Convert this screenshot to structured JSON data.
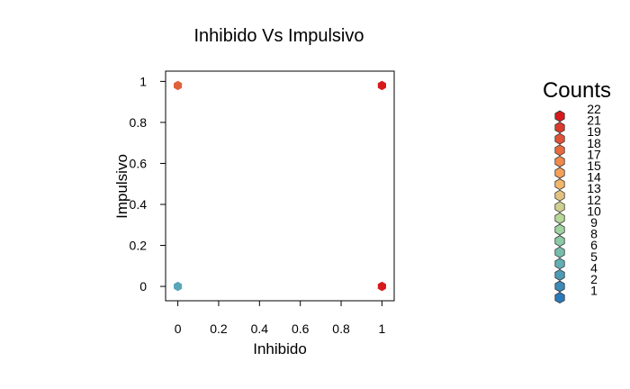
{
  "chart_data": {
    "type": "hexbin",
    "title": "Inhibido Vs Impulsivo",
    "xlabel": "Inhibido",
    "ylabel": "Impulsivo",
    "xlim": [
      -0.06,
      1.06
    ],
    "ylim": [
      -0.07,
      1.05
    ],
    "xticks": [
      0,
      0.2,
      0.4,
      0.6,
      0.8,
      1
    ],
    "yticks": [
      0,
      0.2,
      0.4,
      0.6,
      0.8,
      1
    ],
    "xtick_labels": [
      "0",
      "0.2",
      "0.4",
      "0.6",
      "0.8",
      "1"
    ],
    "ytick_labels": [
      "0",
      "0.2",
      "0.4",
      "0.6",
      "0.8",
      "1"
    ],
    "points": [
      {
        "x": 0,
        "y": 0,
        "count": 5,
        "color": "#5aa5b8"
      },
      {
        "x": 0,
        "y": 0.98,
        "count": 19,
        "color": "#e0603c"
      },
      {
        "x": 1,
        "y": 0.98,
        "count": 22,
        "color": "#d7191c"
      },
      {
        "x": 1,
        "y": 0,
        "count": 22,
        "color": "#d7191c"
      }
    ],
    "legend": {
      "title": "Counts",
      "position": "right",
      "entries": [
        {
          "label": "22",
          "color": "#d7191c"
        },
        {
          "label": "21",
          "color": "#db3a2c"
        },
        {
          "label": "19",
          "color": "#e05238"
        },
        {
          "label": "18",
          "color": "#e86a3e"
        },
        {
          "label": "17",
          "color": "#f08a4a"
        },
        {
          "label": "15",
          "color": "#f5a15a"
        },
        {
          "label": "14",
          "color": "#f2b56c"
        },
        {
          "label": "13",
          "color": "#e1c27e"
        },
        {
          "label": "12",
          "color": "#cdd08e"
        },
        {
          "label": "10",
          "color": "#b7d998"
        },
        {
          "label": "9",
          "color": "#9fd4a2"
        },
        {
          "label": "8",
          "color": "#8ccaa8"
        },
        {
          "label": "6",
          "color": "#76bdab"
        },
        {
          "label": "5",
          "color": "#63aeb2"
        },
        {
          "label": "4",
          "color": "#4f9bb6"
        },
        {
          "label": "2",
          "color": "#3d89b8"
        },
        {
          "label": "1",
          "color": "#2b7bba"
        }
      ]
    }
  }
}
